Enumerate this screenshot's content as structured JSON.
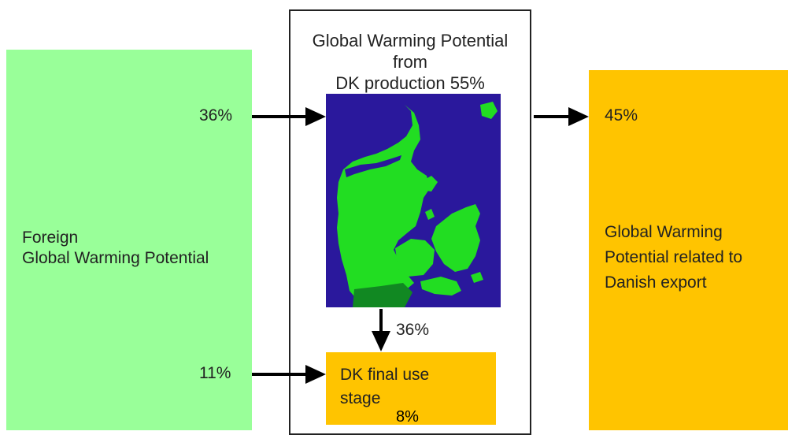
{
  "title": {
    "line1": "Global Warming Potential",
    "line2": "from",
    "line3": "DK production 55%"
  },
  "foreign": {
    "line1": "Foreign",
    "line2": "Global Warming Potential",
    "pct_to_production": "36%",
    "pct_to_final_use": "11%"
  },
  "export": {
    "pct": "45%",
    "line1": "Global Warming",
    "line2": "Potential related to",
    "line3": "Danish export"
  },
  "production_to_final_use_pct": "36%",
  "final_use": {
    "line1": "DK final use",
    "line2": "stage",
    "pct": "8%"
  },
  "map": {
    "sea_color": "#2a189c",
    "land_color": "#22dd22",
    "border_color": "#118822"
  },
  "colors": {
    "foreign_box": "#99ff99",
    "export_box": "#ffc400",
    "final_use_box": "#ffc400"
  }
}
